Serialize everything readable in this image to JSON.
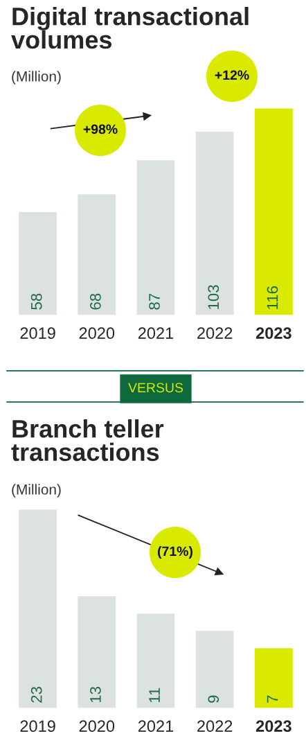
{
  "chart_data": [
    {
      "type": "bar",
      "title": "Digital transactional volumes",
      "subtitle": "(Million)",
      "categories": [
        "2019",
        "2020",
        "2021",
        "2022",
        "2023"
      ],
      "values": [
        58,
        68,
        87,
        103,
        116
      ],
      "colors": [
        "#dce2df",
        "#dce2df",
        "#dce2df",
        "#dce2df",
        "#d9ea00"
      ],
      "data_labels": true,
      "annotations": [
        "+98%",
        "+12%"
      ]
    },
    {
      "type": "bar",
      "title": "Branch teller transactions",
      "subtitle": "(Million)",
      "categories": [
        "2019",
        "2020",
        "2021",
        "2022",
        "2023"
      ],
      "values": [
        23,
        13,
        11,
        9,
        7
      ],
      "colors": [
        "#dce2df",
        "#dce2df",
        "#dce2df",
        "#dce2df",
        "#d9ea00"
      ],
      "data_labels": true,
      "annotations": [
        "VERSUS",
        "(71%)"
      ]
    }
  ]
}
